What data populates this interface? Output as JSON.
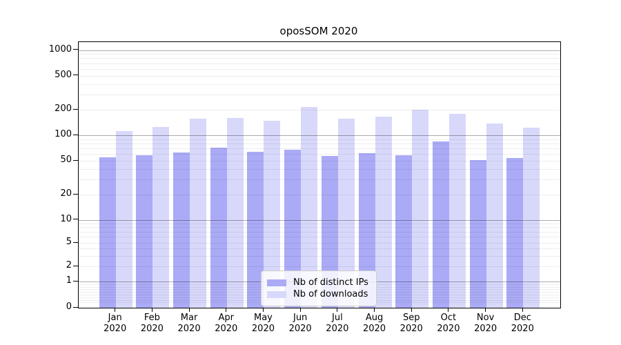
{
  "title": "oposSOM 2020",
  "chart_data": {
    "type": "bar",
    "title": "oposSOM 2020",
    "categories": [
      "Jan 2020",
      "Feb 2020",
      "Mar 2020",
      "Apr 2020",
      "May 2020",
      "Jun 2020",
      "Jul 2020",
      "Aug 2020",
      "Sep 2020",
      "Oct 2020",
      "Nov 2020",
      "Dec 2020"
    ],
    "series": [
      {
        "name": "Nb of distinct IPs",
        "color": "#aaaaf6",
        "values": [
          55,
          58,
          63,
          71,
          64,
          68,
          57,
          61,
          58,
          84,
          51,
          54
        ]
      },
      {
        "name": "Nb of downloads",
        "color": "#d8d8fb",
        "values": [
          112,
          125,
          158,
          160,
          147,
          214,
          158,
          166,
          201,
          180,
          137,
          122
        ]
      }
    ],
    "xlabel": "",
    "ylabel": "",
    "y_scale": "symlog",
    "y_ticks": [
      0,
      1,
      2,
      5,
      10,
      20,
      50,
      100,
      200,
      500,
      1000
    ],
    "ylim": [
      0,
      1240
    ],
    "grid": "horizontal",
    "legend_position": "bottom-center"
  }
}
